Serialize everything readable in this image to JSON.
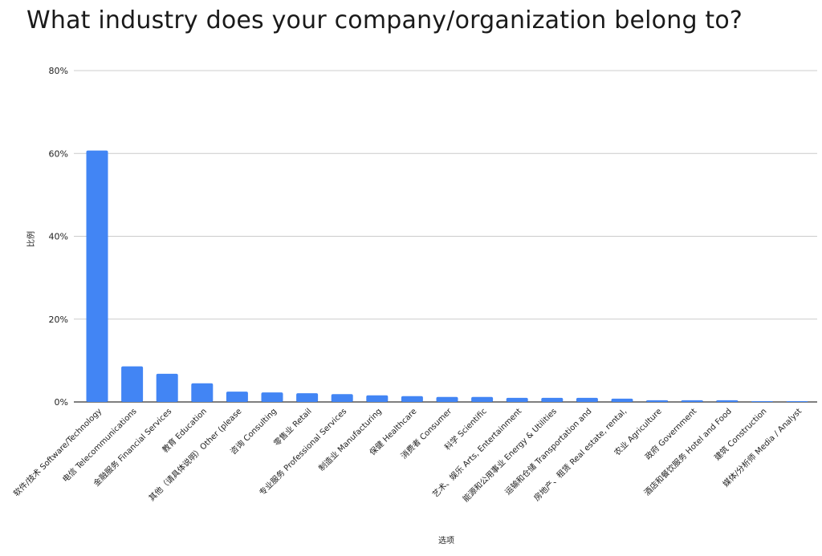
{
  "chart_data": {
    "type": "bar",
    "title": "What industry does your company/organization belong to?",
    "xlabel": "选项",
    "ylabel": "比例",
    "ylim": [
      0,
      80
    ],
    "yticks": [
      "0%",
      "20%",
      "40%",
      "60%",
      "80%"
    ],
    "ytick_values": [
      0,
      20,
      40,
      60,
      80
    ],
    "grid": true,
    "bar_color": "#4285f4",
    "categories": [
      "软件/技术 Software/Technology",
      "电信 Telecommunications",
      "金融服务 Financial Services",
      "教育 Education",
      "其他（请具体说明）Other (please",
      "咨询 Consulting",
      "零售业 Retail",
      "专业服务 Professional Services",
      "制造业 Manufacturing",
      "保健 Healthcare",
      "消费者 Consumer",
      "科学 Scientific",
      "艺术、娱乐 Arts, Entertainment",
      "能源和公用事业 Energy & Utilities",
      "运输和仓储 Transportation and",
      "房地产、租赁 Real estate, rental,",
      "农业 Agriculture",
      "政府 Government",
      "酒店和餐饮服务 Hotel and Food",
      "建筑 Construction",
      "媒体/分析师 Media / Analyst"
    ],
    "values": [
      60.7,
      8.6,
      6.8,
      4.5,
      2.5,
      2.3,
      2.1,
      1.9,
      1.6,
      1.4,
      1.2,
      1.2,
      1.0,
      1.0,
      1.0,
      0.8,
      0.4,
      0.4,
      0.4,
      0.2,
      0.2
    ]
  }
}
